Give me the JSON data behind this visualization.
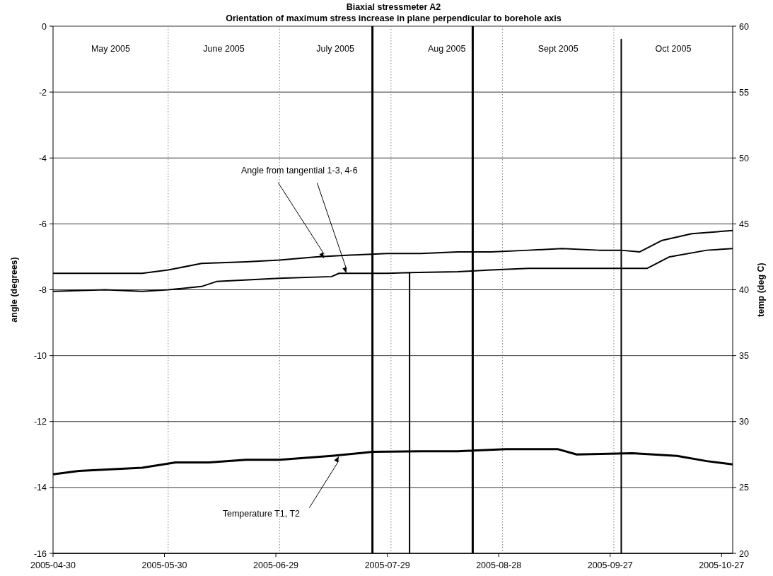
{
  "chart_data": {
    "type": "line",
    "title": "Biaxial stressmeter A2",
    "subtitle": "Orientation of maximum stress increase in plane perpendicular to borehole axis",
    "ylabel": "angle (degrees)",
    "y2label": "temp (deg C)",
    "xlim": [
      "2005-04-30",
      "2005-10-30"
    ],
    "xticks": [
      "2005-04-30",
      "2005-05-30",
      "2005-06-29",
      "2005-07-29",
      "2005-08-28",
      "2005-09-27",
      "2005-10-27"
    ],
    "ylim": [
      -16,
      0
    ],
    "yticks": [
      -16,
      -14,
      -12,
      -10,
      -8,
      -6,
      -4,
      -2,
      0
    ],
    "y2lim": [
      20,
      60
    ],
    "y2ticks": [
      20,
      25,
      30,
      35,
      40,
      45,
      50,
      55,
      60
    ],
    "grid": "y",
    "marker": "none",
    "line_style": "solid",
    "ref_lines": [
      {
        "axis": "x",
        "value": "2005-05-31",
        "line_style": "dotted",
        "color": "#808080"
      },
      {
        "axis": "x",
        "value": "2005-06-30",
        "line_style": "dotted",
        "color": "#808080"
      },
      {
        "axis": "x",
        "value": "2005-07-30",
        "line_style": "dotted",
        "color": "#808080"
      },
      {
        "axis": "x",
        "value": "2005-08-29",
        "line_style": "dotted",
        "color": "#808080"
      },
      {
        "axis": "x",
        "value": "2005-09-28",
        "line_style": "dotted",
        "color": "#808080"
      }
    ],
    "annotations": [
      {
        "text": "Angle from tangential 1-3, 4-6",
        "x": "2005-07-12",
        "y": -7.05
      },
      {
        "text": "Temperature T1, T2",
        "x": "2005-07-16",
        "y": -13.05
      },
      "May 2005",
      "June 2005",
      "July 2005",
      "Aug 2005",
      "Sept 2005",
      "Oct 2005"
    ],
    "series": [
      {
        "color": "#000000",
        "x": [
          "2005-04-30",
          "2005-05-24",
          "2005-05-31",
          "2005-06-09",
          "2005-06-21",
          "2005-06-30",
          "2005-07-10",
          "2005-07-19",
          "2005-07-29",
          "2005-08-07",
          "2005-08-17",
          "2005-08-26",
          "2005-09-05",
          "2005-09-14",
          "2005-09-24",
          "2005-09-30",
          "2005-09-30",
          "2005-09-30",
          "2005-09-30",
          "2005-10-05",
          "2005-10-11",
          "2005-10-19",
          "2005-10-30"
        ],
        "values": [
          -7.5,
          -7.5,
          -7.4,
          -7.2,
          -7.15,
          -7.1,
          -7.0,
          -6.95,
          -6.9,
          -6.9,
          -6.85,
          -6.85,
          -6.8,
          -6.75,
          -6.8,
          -6.8,
          -0.4,
          -16,
          -6.8,
          -6.85,
          -6.5,
          -6.3,
          -6.2
        ]
      },
      {
        "color": "#000000",
        "x": [
          "2005-04-30",
          "2005-05-14",
          "2005-05-24",
          "2005-05-31",
          "2005-06-09",
          "2005-06-13",
          "2005-06-30",
          "2005-07-14",
          "2005-07-16",
          "2005-07-29",
          "2005-08-04",
          "2005-08-04",
          "2005-08-04",
          "2005-08-17",
          "2005-08-26",
          "2005-09-05",
          "2005-09-24",
          "2005-10-07",
          "2005-10-13",
          "2005-10-23",
          "2005-10-30"
        ],
        "values": [
          -8.05,
          -8.0,
          -8.05,
          -8.0,
          -7.9,
          -7.75,
          -7.65,
          -7.6,
          -7.5,
          -7.5,
          -7.48,
          -16,
          -7.48,
          -7.45,
          -7.4,
          -7.35,
          -7.35,
          -7.35,
          -7.0,
          -6.8,
          -6.75
        ]
      },
      {
        "color": "#000000",
        "axis": "y2",
        "x": [
          "2005-04-30",
          "2005-05-07",
          "2005-05-24",
          "2005-06-02",
          "2005-06-11",
          "2005-06-21",
          "2005-06-30",
          "2005-07-14",
          "2005-07-25",
          "2005-07-25",
          "2005-07-25",
          "2005-07-25",
          "2005-08-07",
          "2005-08-17",
          "2005-08-21",
          "2005-08-21",
          "2005-08-21",
          "2005-08-21",
          "2005-08-30",
          "2005-09-13",
          "2005-09-18",
          "2005-10-03",
          "2005-10-15",
          "2005-10-23",
          "2005-10-30"
        ],
        "values": [
          26.0,
          26.25,
          26.5,
          26.9,
          26.9,
          27.1,
          27.1,
          27.4,
          27.7,
          60,
          20,
          27.7,
          27.75,
          27.75,
          27.8,
          60,
          20,
          27.8,
          27.9,
          27.9,
          27.5,
          27.6,
          27.4,
          27.0,
          26.75
        ]
      }
    ]
  }
}
